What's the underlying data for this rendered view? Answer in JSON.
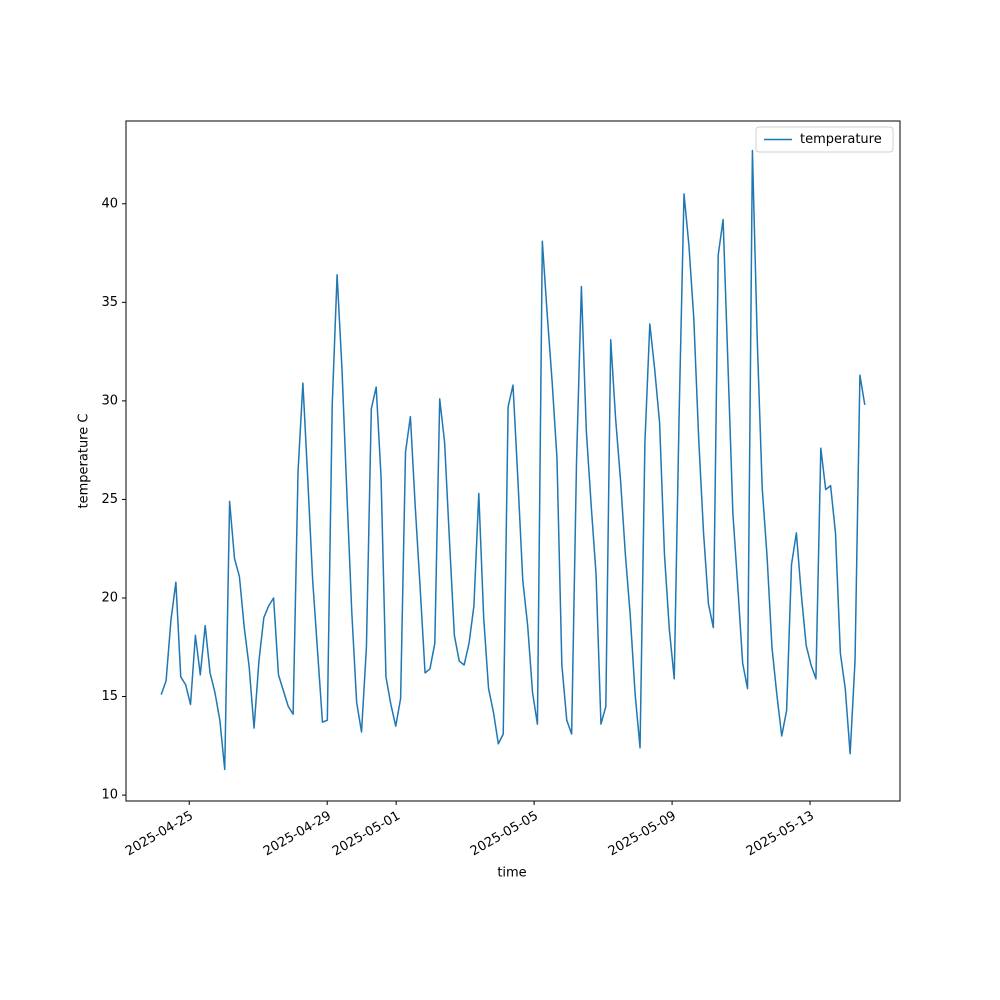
{
  "chart_data": {
    "type": "line",
    "xlabel": "time",
    "ylabel": "temperature C",
    "x": [
      "2025-04-24 04:30",
      "2025-04-24 07:54",
      "2025-04-24 11:18",
      "2025-04-24 14:42",
      "2025-04-24 18:06",
      "2025-04-24 21:30",
      "2025-04-25 00:54",
      "2025-04-25 04:18",
      "2025-04-25 07:42",
      "2025-04-25 11:06",
      "2025-04-25 14:30",
      "2025-04-25 17:54",
      "2025-04-25 21:18",
      "2025-04-26 00:42",
      "2025-04-26 04:06",
      "2025-04-26 07:30",
      "2025-04-26 10:54",
      "2025-04-26 14:18",
      "2025-04-26 17:42",
      "2025-04-26 21:06",
      "2025-04-27 00:30",
      "2025-04-27 03:54",
      "2025-04-27 07:18",
      "2025-04-27 10:42",
      "2025-04-27 14:06",
      "2025-04-27 17:30",
      "2025-04-27 20:54",
      "2025-04-28 00:18",
      "2025-04-28 03:42",
      "2025-04-28 07:06",
      "2025-04-28 10:30",
      "2025-04-28 13:54",
      "2025-04-28 17:18",
      "2025-04-28 20:42",
      "2025-04-29 00:06",
      "2025-04-29 03:30",
      "2025-04-29 06:54",
      "2025-04-29 10:18",
      "2025-04-29 13:42",
      "2025-04-29 17:06",
      "2025-04-29 20:30",
      "2025-04-29 23:54",
      "2025-04-30 03:18",
      "2025-04-30 06:42",
      "2025-04-30 10:06",
      "2025-04-30 13:30",
      "2025-04-30 16:54",
      "2025-04-30 20:18",
      "2025-04-30 23:42",
      "2025-05-01 03:06",
      "2025-05-01 06:30",
      "2025-05-01 09:54",
      "2025-05-01 13:18",
      "2025-05-01 16:42",
      "2025-05-01 20:06",
      "2025-05-01 23:30",
      "2025-05-02 02:54",
      "2025-05-02 06:18",
      "2025-05-02 09:42",
      "2025-05-02 13:06",
      "2025-05-02 16:30",
      "2025-05-02 19:54",
      "2025-05-02 23:18",
      "2025-05-03 02:42",
      "2025-05-03 06:06",
      "2025-05-03 09:30",
      "2025-05-03 12:54",
      "2025-05-03 16:18",
      "2025-05-03 19:42",
      "2025-05-03 23:06",
      "2025-05-04 02:30",
      "2025-05-04 05:54",
      "2025-05-04 09:18",
      "2025-05-04 12:42",
      "2025-05-04 16:06",
      "2025-05-04 19:30",
      "2025-05-04 22:54",
      "2025-05-05 02:18",
      "2025-05-05 05:42",
      "2025-05-05 09:06",
      "2025-05-05 12:30",
      "2025-05-05 15:54",
      "2025-05-05 19:18",
      "2025-05-05 22:42",
      "2025-05-06 02:06",
      "2025-05-06 05:30",
      "2025-05-06 08:54",
      "2025-05-06 12:18",
      "2025-05-06 15:42",
      "2025-05-06 19:06",
      "2025-05-06 22:30",
      "2025-05-07 01:54",
      "2025-05-07 05:18",
      "2025-05-07 08:42",
      "2025-05-07 12:06",
      "2025-05-07 15:30",
      "2025-05-07 18:54",
      "2025-05-07 22:18",
      "2025-05-08 01:42",
      "2025-05-08 05:06",
      "2025-05-08 08:30",
      "2025-05-08 11:54",
      "2025-05-08 15:18",
      "2025-05-08 18:42",
      "2025-05-08 22:06",
      "2025-05-09 01:30",
      "2025-05-09 04:54",
      "2025-05-09 08:18",
      "2025-05-09 11:42",
      "2025-05-09 15:06",
      "2025-05-09 18:30",
      "2025-05-09 21:54",
      "2025-05-10 01:18",
      "2025-05-10 04:42",
      "2025-05-10 08:06",
      "2025-05-10 11:30",
      "2025-05-10 14:54",
      "2025-05-10 18:18",
      "2025-05-10 21:42",
      "2025-05-11 01:06",
      "2025-05-11 04:30",
      "2025-05-11 07:54",
      "2025-05-11 11:18",
      "2025-05-11 14:42",
      "2025-05-11 18:06",
      "2025-05-11 21:30",
      "2025-05-12 00:54",
      "2025-05-12 04:18",
      "2025-05-12 07:42",
      "2025-05-12 11:06",
      "2025-05-12 14:30",
      "2025-05-12 17:54",
      "2025-05-12 21:18",
      "2025-05-13 00:42",
      "2025-05-13 04:06",
      "2025-05-13 07:30",
      "2025-05-13 10:54",
      "2025-05-13 14:18",
      "2025-05-13 17:42",
      "2025-05-13 21:06",
      "2025-05-14 00:30",
      "2025-05-14 03:54",
      "2025-05-14 07:18",
      "2025-05-14 10:42",
      "2025-05-14 14:06"
    ],
    "series": [
      {
        "name": "temperature",
        "color": "#1f77b4",
        "values": [
          15.1,
          15.8,
          18.9,
          20.8,
          16.0,
          15.6,
          14.6,
          18.1,
          16.1,
          18.6,
          16.2,
          15.2,
          13.8,
          11.3,
          24.9,
          22.0,
          21.1,
          18.5,
          16.5,
          13.4,
          16.8,
          19.0,
          19.6,
          20.0,
          16.1,
          15.3,
          14.5,
          14.1,
          26.4,
          30.9,
          26.0,
          20.9,
          17.3,
          13.7,
          13.8,
          29.8,
          36.4,
          31.6,
          25.3,
          19.3,
          14.7,
          13.2,
          17.5,
          29.6,
          30.7,
          26.1,
          16.0,
          14.6,
          13.5,
          14.9,
          27.4,
          29.2,
          24.6,
          20.5,
          16.2,
          16.4,
          17.7,
          30.1,
          27.9,
          22.9,
          18.1,
          16.8,
          16.6,
          17.7,
          19.6,
          25.3,
          19.0,
          15.4,
          14.2,
          12.6,
          13.1,
          29.7,
          30.8,
          26.0,
          20.9,
          18.6,
          15.2,
          13.6,
          38.1,
          34.4,
          31.0,
          27.1,
          16.6,
          13.8,
          13.1,
          26.9,
          35.8,
          28.5,
          24.7,
          21.2,
          13.6,
          14.5,
          33.1,
          29.1,
          26.0,
          22.2,
          19.1,
          15.1,
          12.4,
          27.9,
          33.9,
          31.6,
          28.9,
          22.2,
          18.4,
          15.9,
          29.3,
          40.5,
          37.9,
          34.2,
          28.1,
          23.3,
          19.7,
          18.5,
          37.4,
          39.2,
          31.8,
          24.3,
          20.6,
          16.7,
          15.4,
          42.7,
          33.0,
          25.6,
          22.1,
          17.5,
          15.1,
          13.0,
          14.3,
          21.7,
          23.3,
          20.2,
          17.6,
          16.6,
          15.9,
          27.6,
          25.5,
          25.7,
          23.3,
          17.2,
          15.4,
          12.1,
          16.8,
          31.3,
          29.8
        ]
      }
    ],
    "xlim": [
      "2025-04-23 04:00",
      "2025-05-15 14:36"
    ],
    "xticks": [
      "2025-04-25",
      "2025-04-29",
      "2025-05-01",
      "2025-05-05",
      "2025-05-09",
      "2025-05-13"
    ],
    "ylim": [
      9.7,
      44.2
    ],
    "yticks": [
      10,
      15,
      20,
      25,
      30,
      35,
      40
    ],
    "grid": false,
    "legend": "upper right"
  }
}
